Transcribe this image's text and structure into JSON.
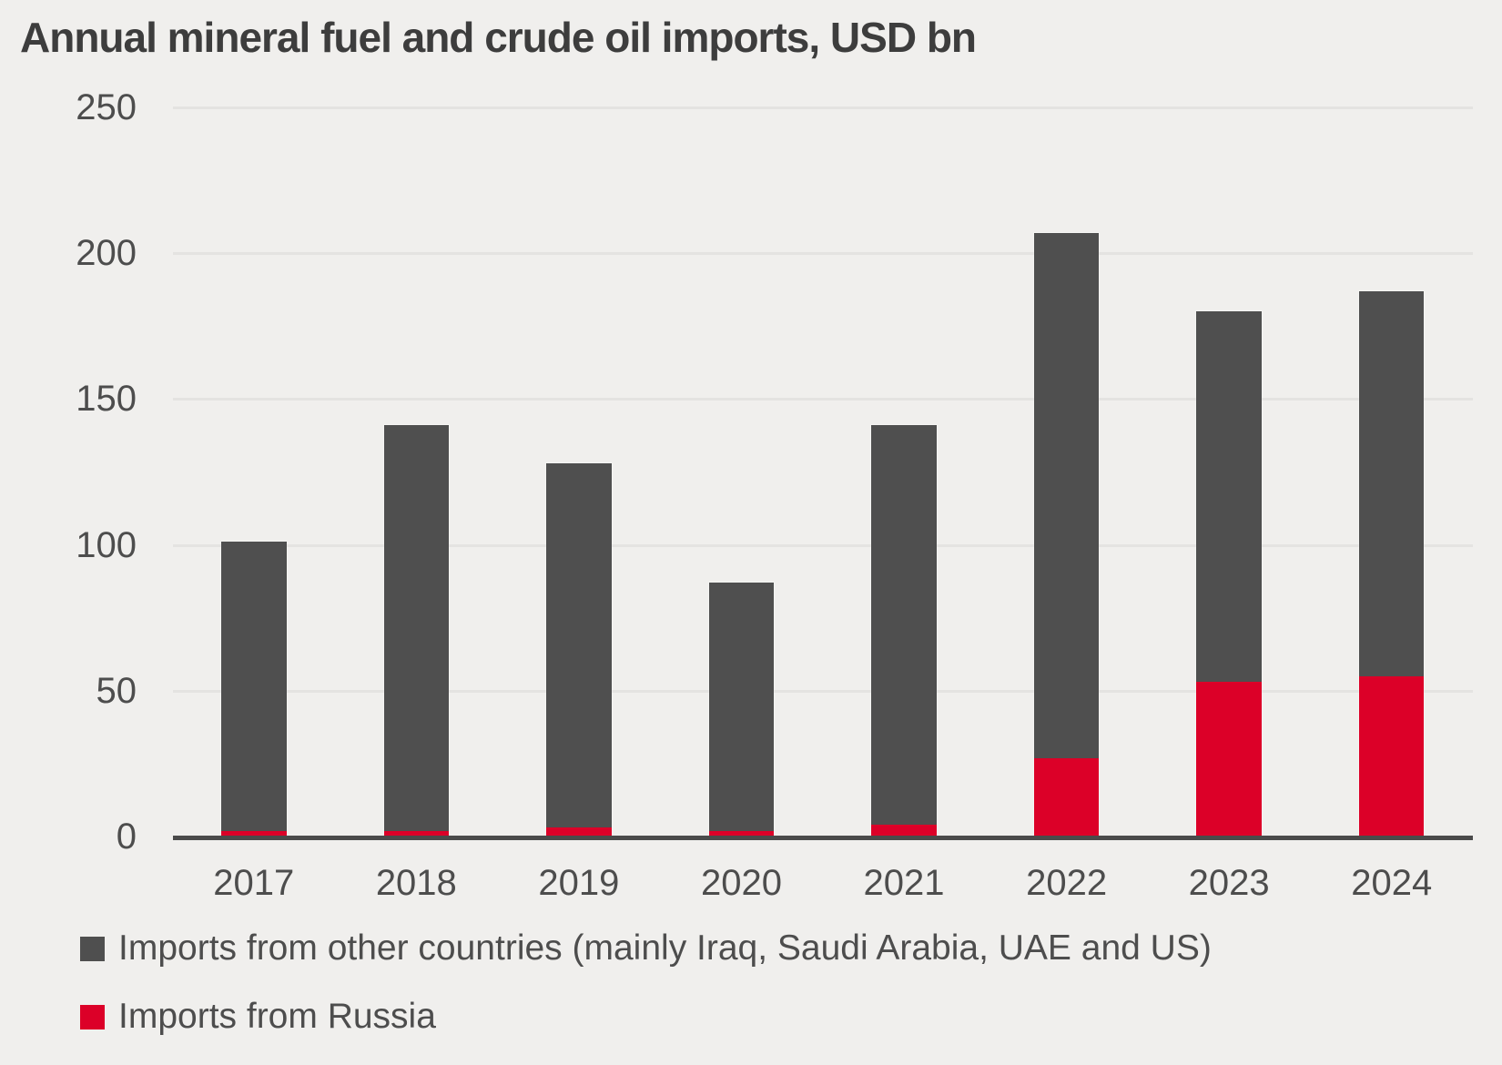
{
  "title": "Annual mineral fuel and crude oil imports, USD bn",
  "colors": {
    "background": "#f0efed",
    "other_series": "#4f4f4f",
    "russia_series": "#dc0028",
    "gridline": "#e4e3e1",
    "axis_line": "#4a4a4a",
    "tick_text": "#4d4d4d",
    "title_text": "#3d3d3d"
  },
  "chart_data": {
    "type": "bar",
    "stacked": true,
    "title": "Annual mineral fuel and crude oil imports, USD bn",
    "categories": [
      "2017",
      "2018",
      "2019",
      "2020",
      "2021",
      "2022",
      "2023",
      "2024"
    ],
    "series": [
      {
        "name": "Imports from Russia",
        "color": "#dc0028",
        "values": [
          2,
          2,
          3,
          2,
          4,
          27,
          53,
          55
        ]
      },
      {
        "name": "Imports from other countries (mainly Iraq, Saudi Arabia, UAE and US)",
        "color": "#4f4f4f",
        "values": [
          99,
          139,
          125,
          85,
          137,
          180,
          127,
          132
        ]
      }
    ],
    "totals": [
      101,
      141,
      128,
      87,
      141,
      207,
      180,
      187
    ],
    "xlabel": "",
    "ylabel": "",
    "ylim": [
      0,
      250
    ],
    "yticks": [
      0,
      50,
      100,
      150,
      200,
      250
    ],
    "grid": "horizontal",
    "legend_position": "bottom-left"
  },
  "legend": {
    "items": [
      {
        "label": "Imports from other countries (mainly Iraq, Saudi Arabia, UAE and US)",
        "color": "#4f4f4f"
      },
      {
        "label": "Imports from Russia",
        "color": "#dc0028"
      }
    ]
  }
}
